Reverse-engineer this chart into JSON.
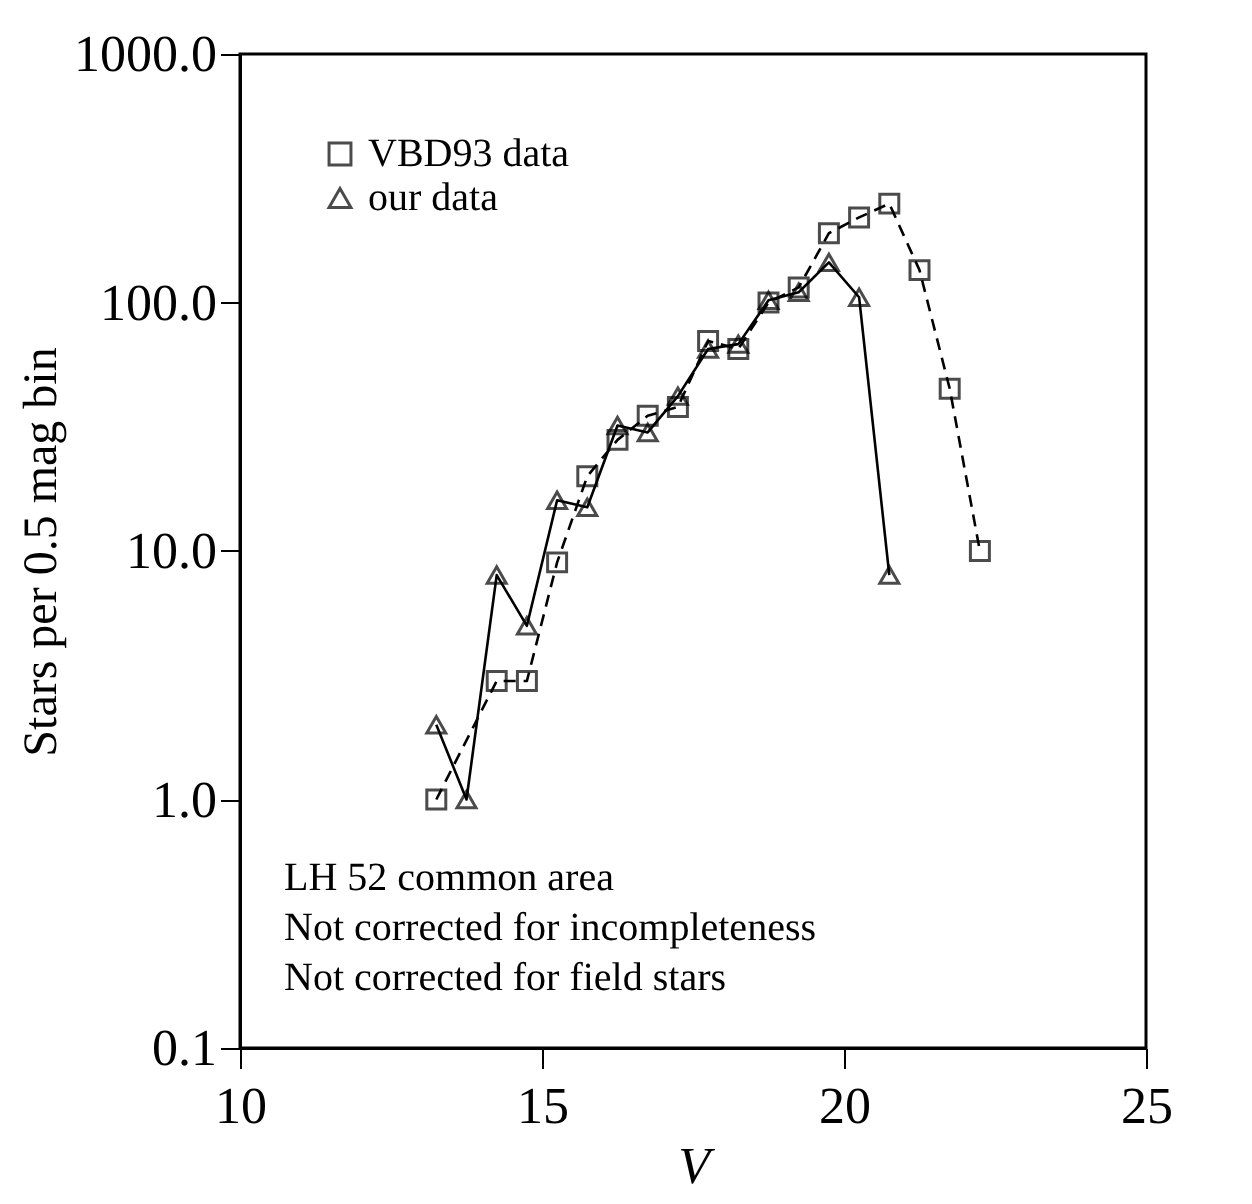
{
  "chart_data": {
    "type": "line",
    "xlabel": "V",
    "ylabel": "Stars per 0.5 mag bin",
    "log": "y",
    "xlim": [
      10,
      25
    ],
    "xticks": [
      10,
      15,
      20,
      25
    ],
    "ylim": [
      0.1,
      1000
    ],
    "yticks": [
      {
        "value": 0.1,
        "label": "0.1"
      },
      {
        "value": 1,
        "label": "1.0"
      },
      {
        "value": 10,
        "label": "10.0"
      },
      {
        "value": 100,
        "label": "100.0"
      },
      {
        "value": 1000,
        "label": "1000.0"
      }
    ],
    "grid": false,
    "legend": "top left",
    "series": [
      {
        "name": "VBD93 data",
        "color": "#000000",
        "marker": "square",
        "line_style": "dashed",
        "x": [
          13.25,
          14.25,
          14.75,
          15.25,
          15.75,
          16.25,
          16.75,
          17.25,
          17.75,
          18.25,
          18.75,
          19.25,
          19.75,
          20.25,
          20.75,
          21.25,
          21.75,
          22.25
        ],
        "values": [
          1,
          3,
          3,
          9,
          20,
          28,
          35,
          38,
          70,
          65,
          100,
          115,
          190,
          220,
          250,
          135,
          45,
          10
        ]
      },
      {
        "name": "our data",
        "color": "#000000",
        "marker": "triangle",
        "line_style": "solid",
        "x": [
          13.25,
          13.75,
          14.25,
          14.75,
          15.25,
          15.75,
          16.25,
          16.75,
          17.25,
          17.75,
          18.25,
          18.75,
          19.25,
          19.75,
          20.25,
          20.75
        ],
        "values": [
          2,
          1,
          8,
          5,
          16,
          15,
          32,
          30,
          42,
          65,
          68,
          102,
          110,
          145,
          105,
          8
        ]
      }
    ],
    "annotations": [
      "LH 52 common area",
      "Not corrected for incompleteness",
      "Not corrected for field stars"
    ]
  }
}
